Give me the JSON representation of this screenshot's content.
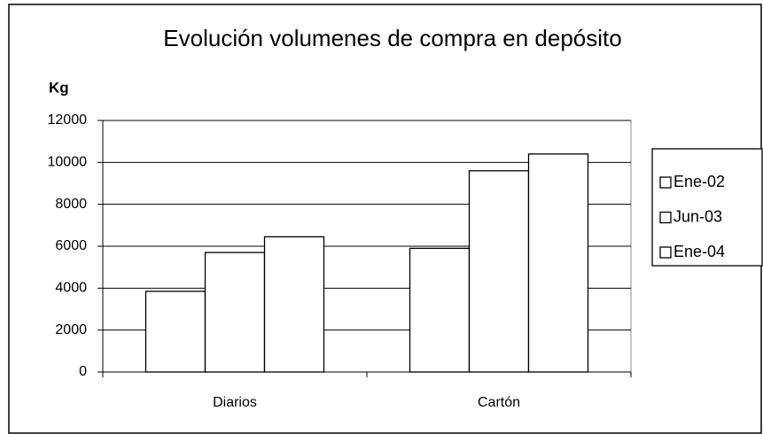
{
  "chart_data": {
    "type": "bar",
    "title": "Evolución volumenes de compra en depósito",
    "y_label": "Kg",
    "categories": [
      "Diarios",
      "Cartón"
    ],
    "series": [
      {
        "name": "Ene-02",
        "color": "#ffffff",
        "values": [
          3850,
          5900
        ]
      },
      {
        "name": "Jun-03",
        "color": "#ffffff",
        "values": [
          5700,
          9600
        ]
      },
      {
        "name": "Ene-04",
        "color": "#ffffff",
        "values": [
          6450,
          10400
        ]
      }
    ],
    "ylim": [
      0,
      12000
    ],
    "yticks": [
      0,
      2000,
      4000,
      6000,
      8000,
      10000,
      12000
    ],
    "grid": true,
    "legend_position": "right"
  }
}
